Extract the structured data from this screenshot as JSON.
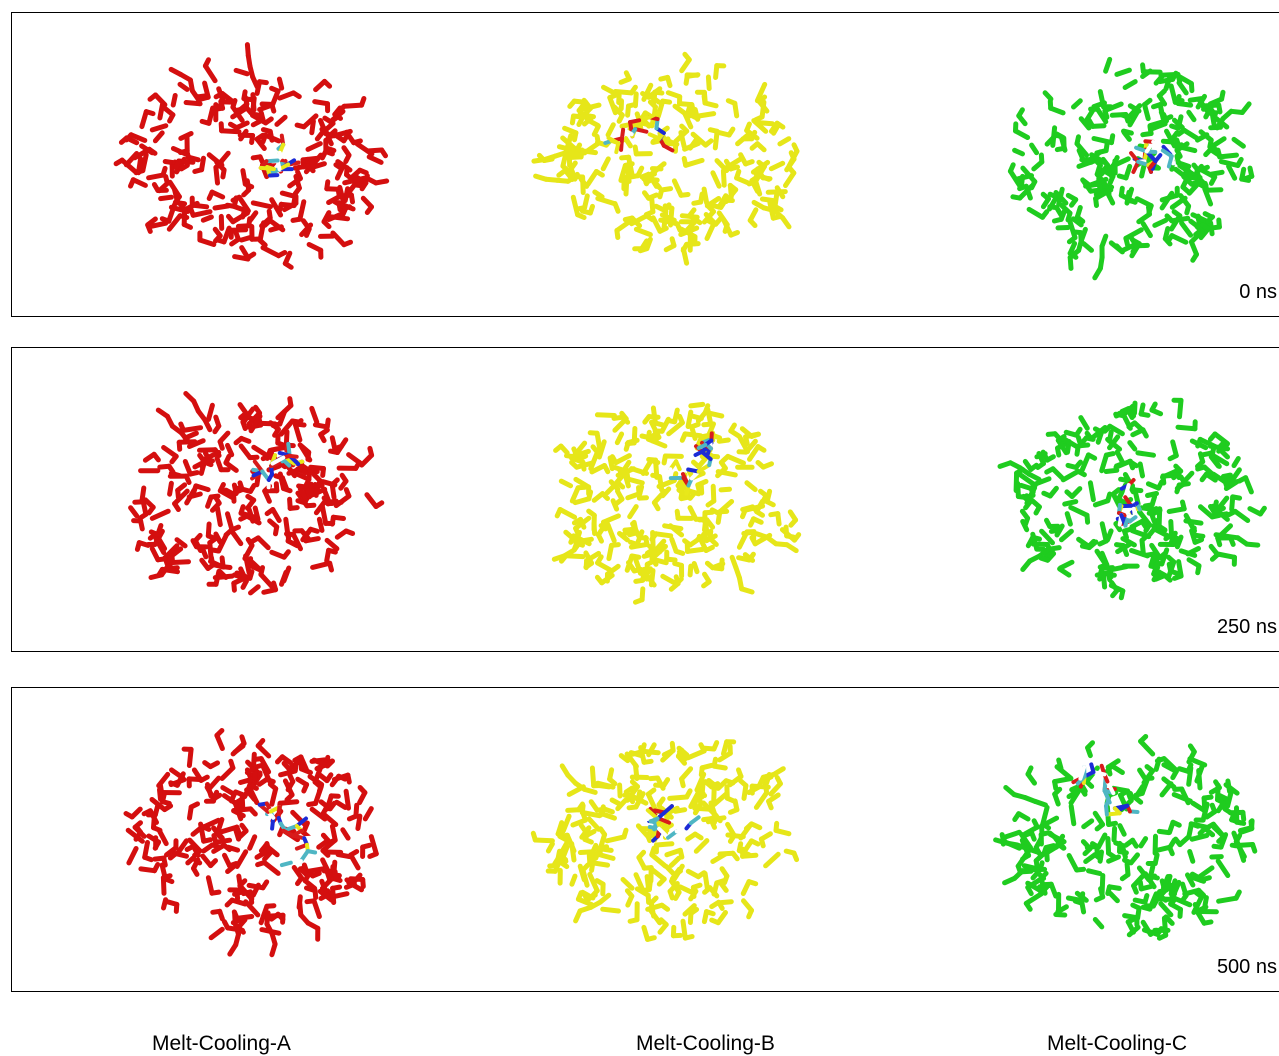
{
  "rows": [
    {
      "time": "0 ns"
    },
    {
      "time": "250 ns"
    },
    {
      "time": "500 ns"
    }
  ],
  "columns": [
    {
      "label": "Melt-Cooling-A",
      "color": "#d40f0f"
    },
    {
      "label": "Melt-Cooling-B",
      "color": "#e6e619"
    },
    {
      "label": "Melt-Cooling-C",
      "color": "#1fcc1f"
    }
  ],
  "ligand_colors": [
    "#4fb6c4",
    "#1c2bd6",
    "#ffffff",
    "#d81b1b",
    "#e8e81a"
  ]
}
